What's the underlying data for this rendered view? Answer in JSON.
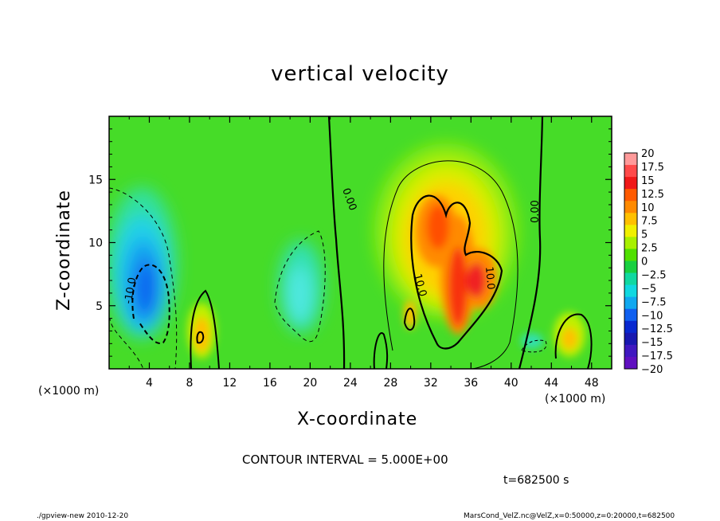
{
  "chart_data": {
    "type": "heatmap",
    "title": "vertical velocity",
    "xlabel": "X-coordinate",
    "ylabel": "Z-coordinate",
    "x_unit_left": "(×1000 m)",
    "x_unit_right": "(×1000 m)",
    "xlim": [
      0,
      50
    ],
    "ylim": [
      0,
      20
    ],
    "xticks": [
      4,
      8,
      12,
      16,
      20,
      24,
      28,
      32,
      36,
      40,
      44,
      48
    ],
    "yticks": [
      5,
      10,
      15
    ],
    "colorbar": {
      "labels": [
        "20",
        "17.5",
        "15",
        "12.5",
        "10",
        "7.5",
        "5",
        "2.5",
        "0",
        "−2.5",
        "−5",
        "−7.5",
        "−10",
        "−12.5",
        "−15",
        "−17.5",
        "−20"
      ],
      "colors": [
        "#ff9a9a",
        "#ff4a4a",
        "#f01818",
        "#ff5a00",
        "#ff8a00",
        "#ffc000",
        "#f0f000",
        "#a8f000",
        "#50e000",
        "#18d040",
        "#10d8a0",
        "#10d8e0",
        "#10a8f0",
        "#1060f0",
        "#0828d0",
        "#1818b0",
        "#4018c0",
        "#6010c0"
      ]
    },
    "contour_labels": [
      "0.00",
      "0.00",
      "-10.0",
      "10.0",
      "10.0"
    ],
    "contour_interval_text": "CONTOUR INTERVAL = 5.000E+00",
    "time_text": "t=682500 s",
    "footer_left": "./gpview-new  2010-12-20",
    "footer_right": "MarsCond_VelZ.nc@VelZ,x=0:50000,z=0:20000,t=682500"
  }
}
